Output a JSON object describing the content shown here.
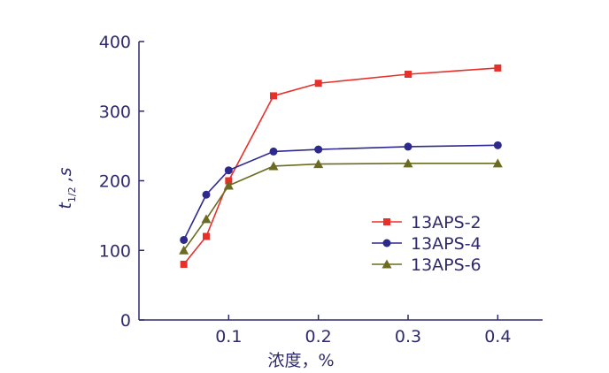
{
  "chart_data": {
    "type": "line",
    "x": [
      0.05,
      0.075,
      0.1,
      0.15,
      0.2,
      0.3,
      0.4
    ],
    "xlabel": "浓度，%",
    "ylabel_main": "t",
    "ylabel_sub": "1/2",
    "ylabel_unit": " ,s",
    "xlim": [
      0.0,
      0.45
    ],
    "ylim": [
      0,
      400
    ],
    "xticks": [
      0.1,
      0.2,
      0.3,
      0.4
    ],
    "xtick_labels": [
      "0.1",
      "0.2",
      "0.3",
      "0.4"
    ],
    "yticks": [
      0,
      100,
      200,
      300,
      400
    ],
    "ytick_labels": [
      "0",
      "100",
      "200",
      "300",
      "400"
    ],
    "grid": false,
    "legend_position": "center-right",
    "series": [
      {
        "name": "13APS-2",
        "marker": "square",
        "color": "#e8302a",
        "values": [
          80,
          120,
          200,
          322,
          340,
          353,
          362
        ]
      },
      {
        "name": "13APS-4",
        "marker": "circle",
        "color": "#2e2a8c",
        "values": [
          115,
          180,
          215,
          242,
          245,
          249,
          251
        ]
      },
      {
        "name": "13APS-6",
        "marker": "triangle",
        "color": "#6b6b22",
        "values": [
          100,
          145,
          193,
          221,
          224,
          225,
          225
        ]
      }
    ]
  },
  "colors": {
    "axis": "#2e2a6e",
    "text": "#2e2a6e"
  }
}
